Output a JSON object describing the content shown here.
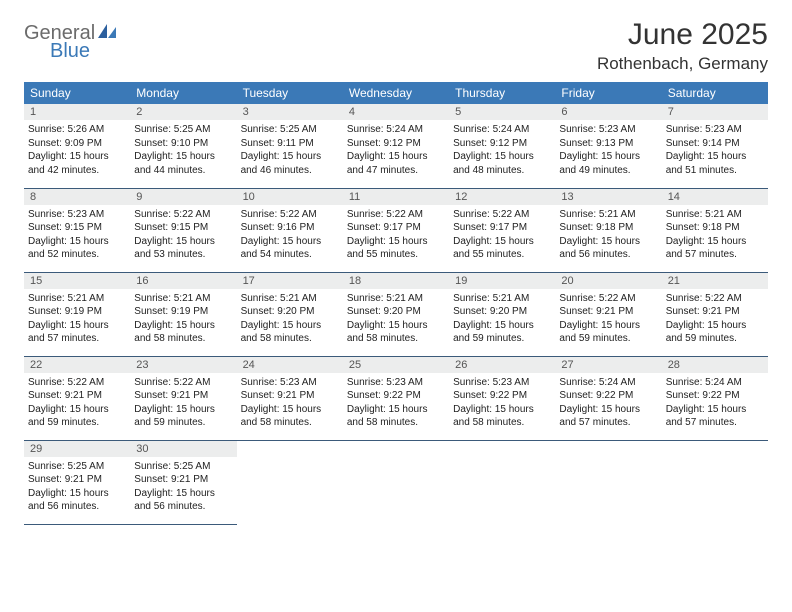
{
  "brand": {
    "general": "General",
    "blue": "Blue"
  },
  "title": "June 2025",
  "location": "Rothenbach, Germany",
  "colors": {
    "header_bg": "#3b79b7",
    "header_fg": "#ffffff",
    "daynum_bg": "#eceded",
    "row_border": "#3b5a7a",
    "logo_gray": "#6b6b6b",
    "logo_blue": "#3b79b7",
    "page_bg": "#ffffff"
  },
  "typography": {
    "title_fontsize": 30,
    "location_fontsize": 17,
    "header_fontsize": 12,
    "daynum_fontsize": 11,
    "body_fontsize": 10
  },
  "weekdays": [
    "Sunday",
    "Monday",
    "Tuesday",
    "Wednesday",
    "Thursday",
    "Friday",
    "Saturday"
  ],
  "days": [
    {
      "n": "1",
      "sunrise": "5:26 AM",
      "sunset": "9:09 PM",
      "daylight": "15 hours and 42 minutes."
    },
    {
      "n": "2",
      "sunrise": "5:25 AM",
      "sunset": "9:10 PM",
      "daylight": "15 hours and 44 minutes."
    },
    {
      "n": "3",
      "sunrise": "5:25 AM",
      "sunset": "9:11 PM",
      "daylight": "15 hours and 46 minutes."
    },
    {
      "n": "4",
      "sunrise": "5:24 AM",
      "sunset": "9:12 PM",
      "daylight": "15 hours and 47 minutes."
    },
    {
      "n": "5",
      "sunrise": "5:24 AM",
      "sunset": "9:12 PM",
      "daylight": "15 hours and 48 minutes."
    },
    {
      "n": "6",
      "sunrise": "5:23 AM",
      "sunset": "9:13 PM",
      "daylight": "15 hours and 49 minutes."
    },
    {
      "n": "7",
      "sunrise": "5:23 AM",
      "sunset": "9:14 PM",
      "daylight": "15 hours and 51 minutes."
    },
    {
      "n": "8",
      "sunrise": "5:23 AM",
      "sunset": "9:15 PM",
      "daylight": "15 hours and 52 minutes."
    },
    {
      "n": "9",
      "sunrise": "5:22 AM",
      "sunset": "9:15 PM",
      "daylight": "15 hours and 53 minutes."
    },
    {
      "n": "10",
      "sunrise": "5:22 AM",
      "sunset": "9:16 PM",
      "daylight": "15 hours and 54 minutes."
    },
    {
      "n": "11",
      "sunrise": "5:22 AM",
      "sunset": "9:17 PM",
      "daylight": "15 hours and 55 minutes."
    },
    {
      "n": "12",
      "sunrise": "5:22 AM",
      "sunset": "9:17 PM",
      "daylight": "15 hours and 55 minutes."
    },
    {
      "n": "13",
      "sunrise": "5:21 AM",
      "sunset": "9:18 PM",
      "daylight": "15 hours and 56 minutes."
    },
    {
      "n": "14",
      "sunrise": "5:21 AM",
      "sunset": "9:18 PM",
      "daylight": "15 hours and 57 minutes."
    },
    {
      "n": "15",
      "sunrise": "5:21 AM",
      "sunset": "9:19 PM",
      "daylight": "15 hours and 57 minutes."
    },
    {
      "n": "16",
      "sunrise": "5:21 AM",
      "sunset": "9:19 PM",
      "daylight": "15 hours and 58 minutes."
    },
    {
      "n": "17",
      "sunrise": "5:21 AM",
      "sunset": "9:20 PM",
      "daylight": "15 hours and 58 minutes."
    },
    {
      "n": "18",
      "sunrise": "5:21 AM",
      "sunset": "9:20 PM",
      "daylight": "15 hours and 58 minutes."
    },
    {
      "n": "19",
      "sunrise": "5:21 AM",
      "sunset": "9:20 PM",
      "daylight": "15 hours and 59 minutes."
    },
    {
      "n": "20",
      "sunrise": "5:22 AM",
      "sunset": "9:21 PM",
      "daylight": "15 hours and 59 minutes."
    },
    {
      "n": "21",
      "sunrise": "5:22 AM",
      "sunset": "9:21 PM",
      "daylight": "15 hours and 59 minutes."
    },
    {
      "n": "22",
      "sunrise": "5:22 AM",
      "sunset": "9:21 PM",
      "daylight": "15 hours and 59 minutes."
    },
    {
      "n": "23",
      "sunrise": "5:22 AM",
      "sunset": "9:21 PM",
      "daylight": "15 hours and 59 minutes."
    },
    {
      "n": "24",
      "sunrise": "5:23 AM",
      "sunset": "9:21 PM",
      "daylight": "15 hours and 58 minutes."
    },
    {
      "n": "25",
      "sunrise": "5:23 AM",
      "sunset": "9:22 PM",
      "daylight": "15 hours and 58 minutes."
    },
    {
      "n": "26",
      "sunrise": "5:23 AM",
      "sunset": "9:22 PM",
      "daylight": "15 hours and 58 minutes."
    },
    {
      "n": "27",
      "sunrise": "5:24 AM",
      "sunset": "9:22 PM",
      "daylight": "15 hours and 57 minutes."
    },
    {
      "n": "28",
      "sunrise": "5:24 AM",
      "sunset": "9:22 PM",
      "daylight": "15 hours and 57 minutes."
    },
    {
      "n": "29",
      "sunrise": "5:25 AM",
      "sunset": "9:21 PM",
      "daylight": "15 hours and 56 minutes."
    },
    {
      "n": "30",
      "sunrise": "5:25 AM",
      "sunset": "9:21 PM",
      "daylight": "15 hours and 56 minutes."
    }
  ],
  "labels": {
    "sunrise": "Sunrise: ",
    "sunset": "Sunset: ",
    "daylight": "Daylight: "
  },
  "layout": {
    "first_weekday_index": 0,
    "rows": 5,
    "cols": 7
  }
}
